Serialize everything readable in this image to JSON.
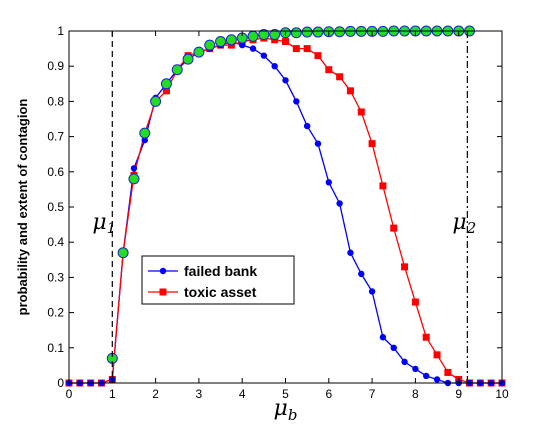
{
  "chart_data": {
    "type": "line",
    "xlabel": "μ",
    "xlabel_subscript": "b",
    "ylabel": "probability and extent of contagion",
    "xlim": [
      0,
      10
    ],
    "ylim": [
      0,
      1
    ],
    "xticks": [
      "0",
      "1",
      "2",
      "3",
      "4",
      "5",
      "6",
      "7",
      "8",
      "9",
      "10"
    ],
    "yticks": [
      "0",
      "0.1",
      "0.2",
      "0.3",
      "0.4",
      "0.5",
      "0.6",
      "0.7",
      "0.8",
      "0.9",
      "1"
    ],
    "grid": false,
    "legend_position": "center-left",
    "series": [
      {
        "name": "failed bank",
        "color": "#0000ff",
        "marker": "circle",
        "x": [
          0,
          0.25,
          0.5,
          0.75,
          1,
          1.25,
          1.5,
          1.75,
          2,
          2.25,
          2.5,
          2.75,
          3,
          3.25,
          3.5,
          3.75,
          4,
          4.25,
          4.5,
          4.75,
          5,
          5.25,
          5.5,
          5.75,
          6,
          6.25,
          6.5,
          6.75,
          7,
          7.25,
          7.5,
          7.75,
          8,
          8.25,
          8.5,
          8.75,
          9,
          9.25,
          9.5,
          9.75,
          10
        ],
        "values": [
          0,
          0,
          0,
          0,
          0.01,
          0.37,
          0.61,
          0.69,
          0.81,
          0.85,
          0.89,
          0.92,
          0.94,
          0.95,
          0.96,
          0.97,
          0.96,
          0.95,
          0.93,
          0.9,
          0.86,
          0.8,
          0.73,
          0.68,
          0.57,
          0.51,
          0.37,
          0.31,
          0.26,
          0.13,
          0.1,
          0.06,
          0.04,
          0.02,
          0.01,
          0,
          0,
          0,
          0,
          0,
          0
        ]
      },
      {
        "name": "toxic asset",
        "color": "#ff0000",
        "marker": "square",
        "x": [
          0,
          0.25,
          0.5,
          0.75,
          1,
          1.25,
          1.5,
          1.75,
          2,
          2.25,
          2.5,
          2.75,
          3,
          3.25,
          3.5,
          3.75,
          4,
          4.25,
          4.5,
          4.75,
          5,
          5.25,
          5.5,
          5.75,
          6,
          6.25,
          6.5,
          6.75,
          7,
          7.25,
          7.5,
          7.75,
          8,
          8.25,
          8.5,
          8.75,
          9,
          9.25,
          9.5,
          9.75,
          10
        ],
        "values": [
          0,
          0,
          0,
          0,
          0.01,
          0.37,
          0.59,
          0.71,
          0.8,
          0.83,
          0.89,
          0.93,
          0.94,
          0.95,
          0.96,
          0.96,
          0.97,
          0.975,
          0.98,
          0.975,
          0.97,
          0.95,
          0.95,
          0.93,
          0.89,
          0.87,
          0.83,
          0.77,
          0.68,
          0.56,
          0.44,
          0.33,
          0.23,
          0.13,
          0.08,
          0.03,
          0.01,
          0,
          0,
          0,
          0
        ]
      },
      {
        "name": "",
        "color": "#22dd22",
        "stroke": "#2222cc",
        "marker": "circle-large",
        "x": [
          1,
          1.25,
          1.5,
          1.75,
          2,
          2.25,
          2.5,
          2.75,
          3,
          3.25,
          3.5,
          3.75,
          4,
          4.25,
          4.5,
          4.75,
          5,
          5.25,
          5.5,
          5.75,
          6,
          6.25,
          6.5,
          6.75,
          7,
          7.25,
          7.5,
          7.75,
          8,
          8.25,
          8.5,
          8.75,
          9,
          9.25
        ],
        "values": [
          0.07,
          0.37,
          0.58,
          0.71,
          0.8,
          0.85,
          0.89,
          0.92,
          0.94,
          0.96,
          0.97,
          0.975,
          0.98,
          0.985,
          0.99,
          0.99,
          0.995,
          0.995,
          0.997,
          0.997,
          0.998,
          0.998,
          0.999,
          0.999,
          0.999,
          0.999,
          1,
          1,
          1,
          1,
          1,
          1,
          1,
          1
        ]
      }
    ],
    "vlines": [
      {
        "x": 1.0,
        "label": "μ",
        "subscript": "1",
        "style": "dashed"
      },
      {
        "x": 9.2,
        "label": "μ",
        "subscript": "2",
        "style": "dashdot"
      }
    ]
  }
}
